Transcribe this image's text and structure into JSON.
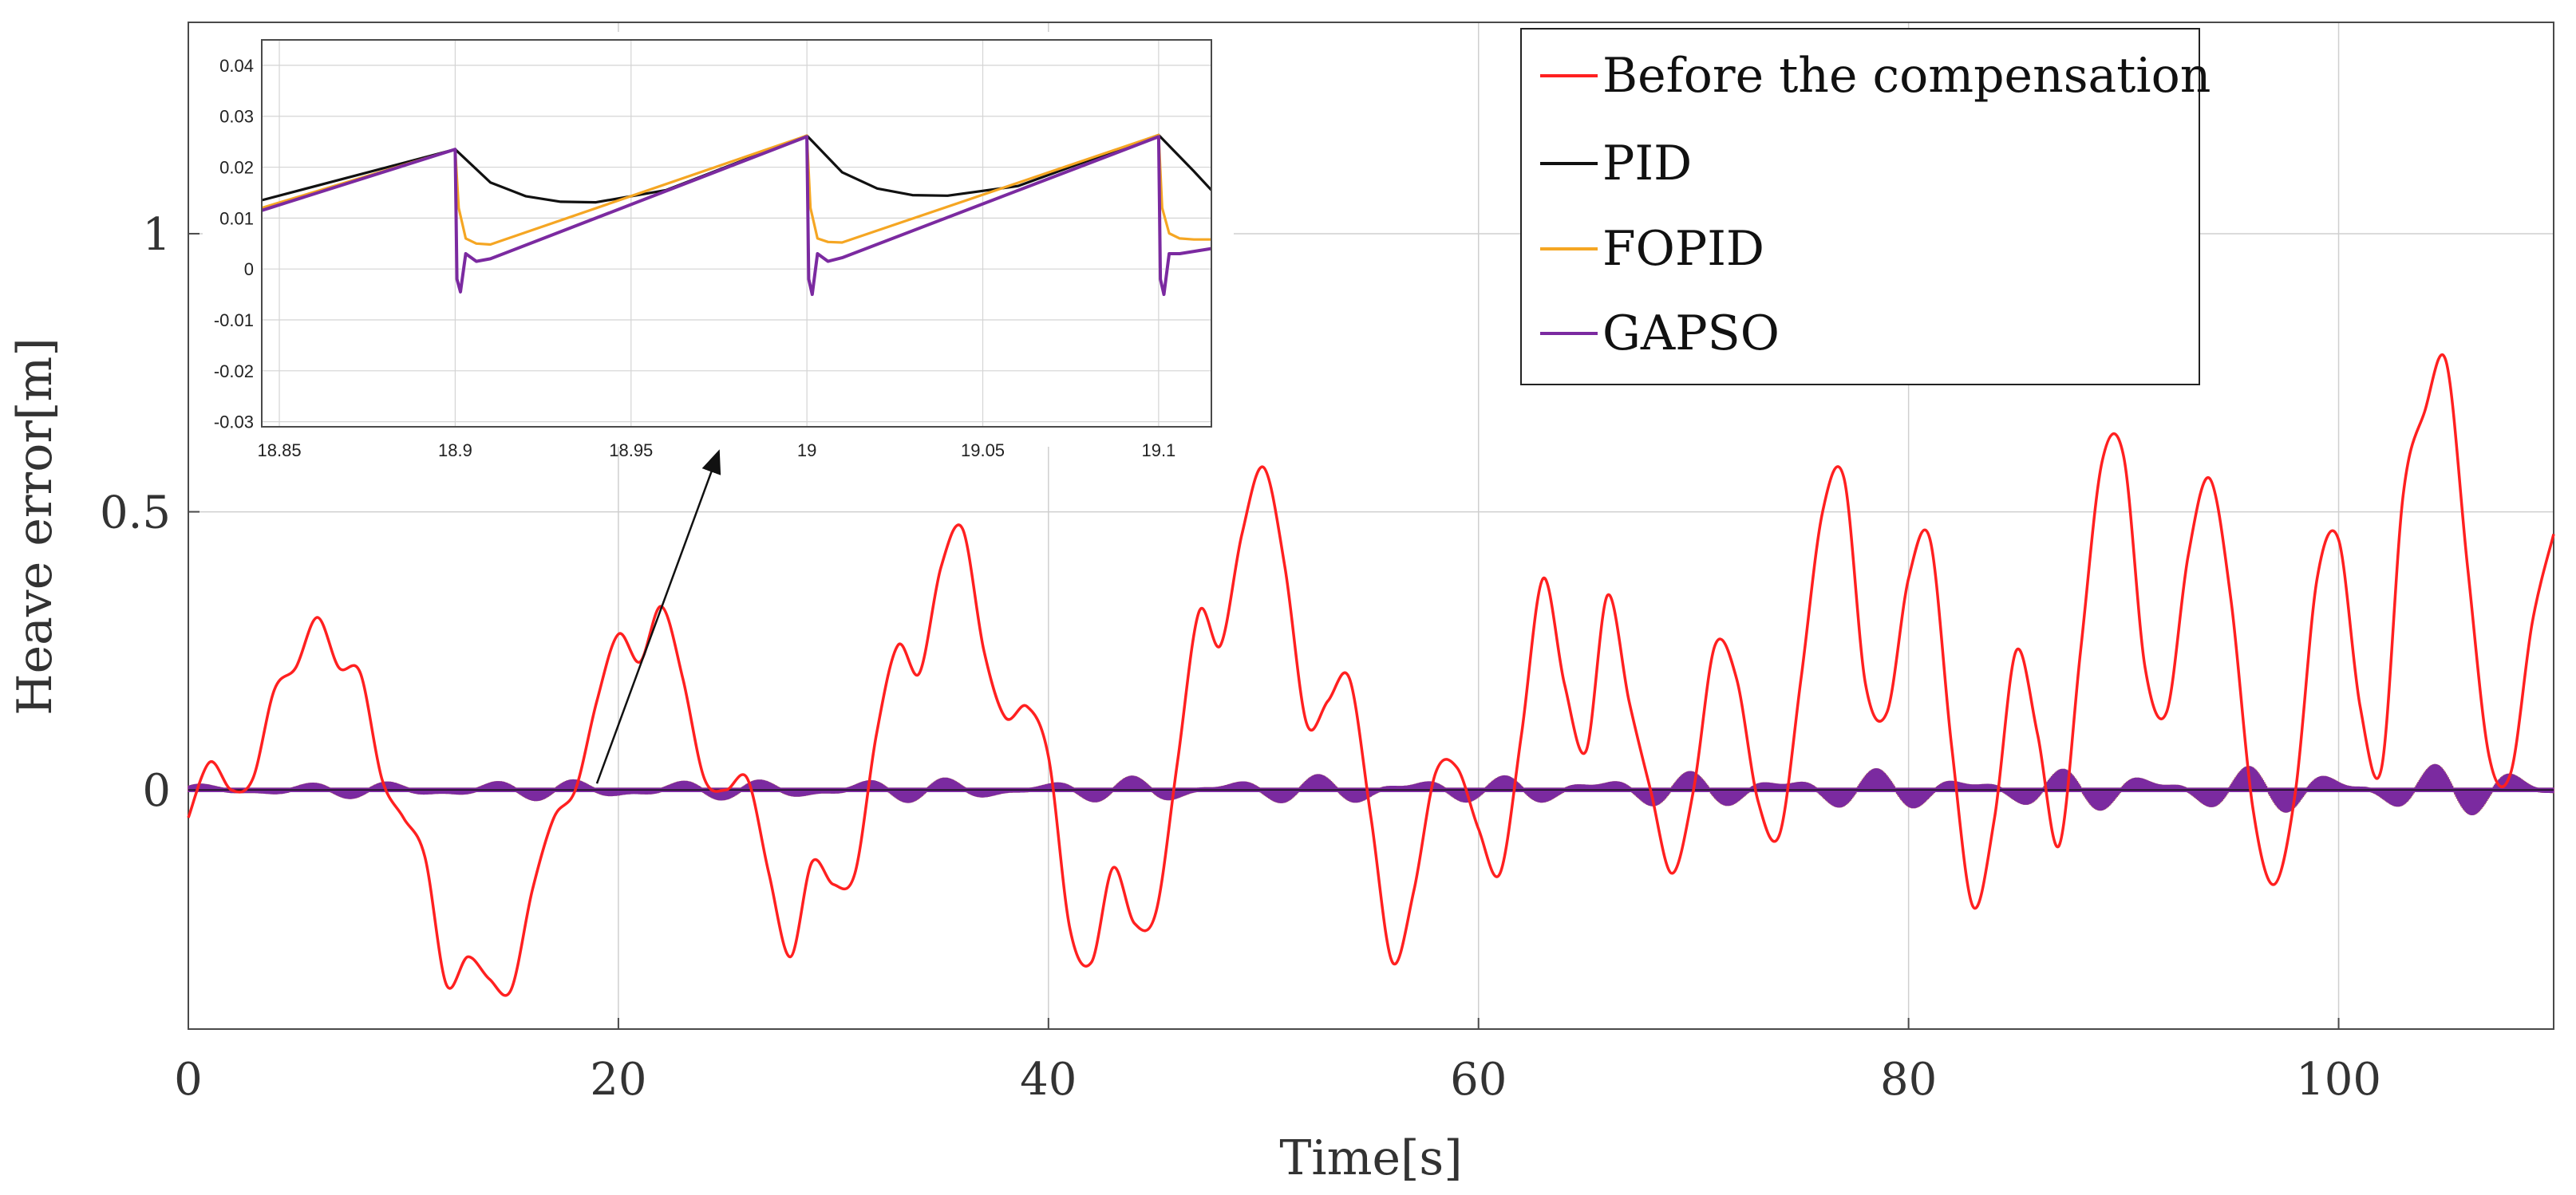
{
  "chart_data": [
    {
      "type": "line",
      "panel": "main",
      "xlabel": "Time[s]",
      "ylabel": "Heave error[m]",
      "xlim": [
        0,
        110
      ],
      "ylim": [
        -0.43,
        1.38
      ],
      "x_ticks": [
        0,
        20,
        40,
        60,
        80,
        100
      ],
      "x_tick_labels": [
        "0",
        "20",
        "40",
        "60",
        "80",
        "100"
      ],
      "y_ticks": [
        0,
        0.5,
        1
      ],
      "y_tick_labels": [
        "0",
        "0.5",
        "1"
      ],
      "grid": true,
      "legend_position": "top-right",
      "series": [
        {
          "name": "Before the compensation",
          "color": "#ff2020",
          "x": [
            0,
            1,
            2,
            3,
            4,
            5,
            6,
            7,
            8,
            9,
            10,
            11,
            12,
            13,
            14,
            15,
            16,
            17,
            18,
            19,
            20,
            21,
            22,
            23,
            24,
            25,
            26,
            27,
            28,
            29,
            30,
            31,
            32,
            33,
            34,
            35,
            36,
            37,
            38,
            39,
            40,
            41,
            42,
            43,
            44,
            45,
            46,
            47,
            48,
            49,
            50,
            51,
            52,
            53,
            54,
            55,
            56,
            57,
            58,
            59,
            60,
            61,
            62,
            63,
            64,
            65,
            66,
            67,
            68,
            69,
            70,
            71,
            72,
            73,
            74,
            75,
            76,
            77,
            78,
            79,
            80,
            81,
            82,
            83,
            84,
            85,
            86,
            87,
            88,
            89,
            90,
            91,
            92,
            93,
            94,
            95,
            96,
            97,
            98,
            99,
            100,
            101,
            102,
            103,
            104,
            105,
            106,
            107,
            108,
            109,
            110
          ],
          "values": [
            -0.05,
            0.05,
            0.0,
            0.02,
            0.18,
            0.22,
            0.31,
            0.22,
            0.21,
            0.02,
            -0.05,
            -0.12,
            -0.35,
            -0.3,
            -0.34,
            -0.36,
            -0.18,
            -0.05,
            0.0,
            0.16,
            0.28,
            0.23,
            0.33,
            0.2,
            0.02,
            0.0,
            0.02,
            -0.15,
            -0.3,
            -0.13,
            -0.17,
            -0.15,
            0.1,
            0.26,
            0.21,
            0.4,
            0.47,
            0.25,
            0.13,
            0.15,
            0.06,
            -0.25,
            -0.31,
            -0.14,
            -0.24,
            -0.22,
            0.05,
            0.32,
            0.26,
            0.46,
            0.58,
            0.4,
            0.12,
            0.16,
            0.2,
            -0.05,
            -0.31,
            -0.18,
            0.03,
            0.04,
            -0.07,
            -0.15,
            0.1,
            0.38,
            0.19,
            0.07,
            0.35,
            0.16,
            0.0,
            -0.15,
            0.0,
            0.26,
            0.2,
            -0.02,
            -0.08,
            0.2,
            0.5,
            0.56,
            0.19,
            0.14,
            0.38,
            0.45,
            0.08,
            -0.21,
            -0.05,
            0.25,
            0.1,
            -0.1,
            0.25,
            0.59,
            0.6,
            0.22,
            0.14,
            0.42,
            0.56,
            0.34,
            -0.03,
            -0.17,
            0.0,
            0.38,
            0.45,
            0.15,
            0.04,
            0.53,
            0.68,
            0.77,
            0.4,
            0.06,
            0.03,
            0.3,
            0.46
          ]
        },
        {
          "name": "PID",
          "color": "#111111",
          "x": [
            0,
            110
          ],
          "values": [
            0,
            0
          ]
        },
        {
          "name": "FOPID",
          "color": "#f5a623",
          "x": [
            0,
            110
          ],
          "values": [
            0,
            0
          ]
        },
        {
          "name": "GAPSO",
          "color": "#7b2aa0",
          "description_band": "oscillating envelope",
          "x": [
            0,
            5,
            10,
            15,
            20,
            25,
            30,
            35,
            40,
            45,
            50,
            55,
            60,
            65,
            70,
            75,
            80,
            85,
            90,
            95,
            100,
            105,
            110
          ],
          "envelope": [
            0.01,
            0.01,
            0.015,
            0.015,
            0.02,
            0.015,
            0.02,
            0.02,
            0.015,
            0.025,
            0.02,
            0.03,
            0.02,
            0.03,
            0.03,
            0.035,
            0.035,
            0.03,
            0.04,
            0.04,
            0.04,
            0.045,
            0.04
          ]
        }
      ]
    },
    {
      "type": "line",
      "panel": "inset",
      "xlim": [
        18.845,
        19.115
      ],
      "ylim": [
        -0.031,
        0.045
      ],
      "x_ticks": [
        18.85,
        18.9,
        18.95,
        19,
        19.05,
        19.1
      ],
      "x_tick_labels": [
        "18.85",
        "18.9",
        "18.95",
        "19",
        "19.05",
        "19.1"
      ],
      "y_ticks": [
        -0.03,
        -0.02,
        -0.01,
        0,
        0.01,
        0.02,
        0.03,
        0.04
      ],
      "y_tick_labels": [
        "-0.03",
        "-0.02",
        "-0.01",
        "0",
        "0.01",
        "0.02",
        "0.03",
        "0.04"
      ],
      "grid": true,
      "series": [
        {
          "name": "PID",
          "color": "#111111",
          "x": [
            18.845,
            18.9,
            18.91,
            18.92,
            18.93,
            18.94,
            18.96,
            19.0,
            19.01,
            19.02,
            19.03,
            19.04,
            19.06,
            19.1,
            19.11,
            19.115
          ],
          "values": [
            0.0135,
            0.0235,
            0.017,
            0.0143,
            0.0132,
            0.0131,
            0.0155,
            0.0262,
            0.019,
            0.0158,
            0.0145,
            0.0144,
            0.0163,
            0.0263,
            0.0192,
            0.0155
          ]
        },
        {
          "name": "FOPID",
          "color": "#f5a623",
          "x": [
            18.845,
            18.9,
            18.901,
            18.903,
            18.906,
            18.91,
            19.0,
            19.001,
            19.003,
            19.006,
            19.01,
            19.1,
            19.101,
            19.103,
            19.106,
            19.11,
            19.115
          ],
          "values": [
            0.012,
            0.0235,
            0.012,
            0.006,
            0.005,
            0.0048,
            0.0262,
            0.012,
            0.006,
            0.0053,
            0.0052,
            0.0263,
            0.012,
            0.007,
            0.006,
            0.0058,
            0.0058
          ]
        },
        {
          "name": "GAPSO",
          "color": "#7b2aa0",
          "x": [
            18.845,
            18.9,
            18.9005,
            18.9015,
            18.903,
            18.906,
            18.91,
            19.0,
            19.0005,
            19.0015,
            19.003,
            19.006,
            19.01,
            19.1,
            19.1005,
            19.1015,
            19.103,
            19.106,
            19.115
          ],
          "values": [
            0.0115,
            0.0235,
            -0.002,
            -0.0045,
            0.003,
            0.0015,
            0.002,
            0.026,
            -0.002,
            -0.005,
            0.003,
            0.0015,
            0.0022,
            0.026,
            -0.002,
            -0.005,
            0.003,
            0.003,
            0.004
          ]
        }
      ]
    }
  ],
  "legend": {
    "items": [
      {
        "label": "Before the compensation",
        "color": "#ff2020"
      },
      {
        "label": "PID",
        "color": "#111111"
      },
      {
        "label": "FOPID",
        "color": "#f5a623"
      },
      {
        "label": "GAPSO",
        "color": "#7b2aa0"
      }
    ]
  },
  "annotation": {
    "arrow_from_time": 19,
    "arrow_from_value": 0.0
  }
}
